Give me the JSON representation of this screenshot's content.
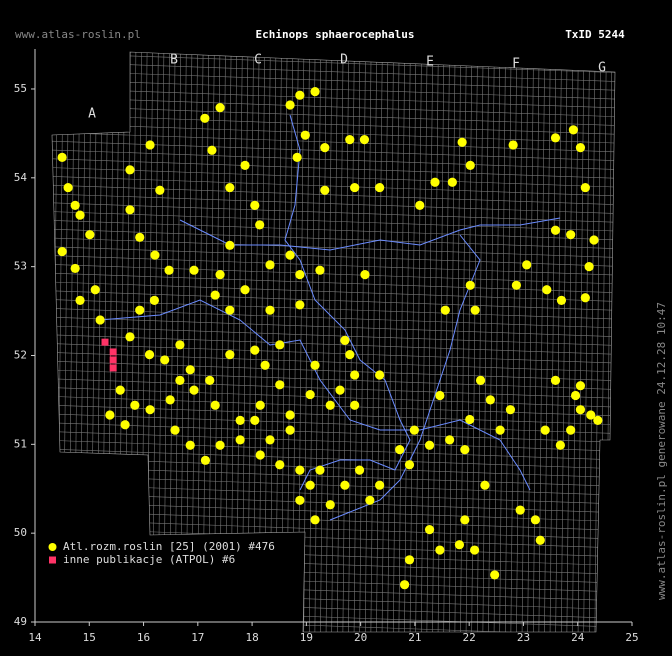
{
  "chart_data": {
    "type": "scatter",
    "title": "Echinops sphaerocephalus",
    "taxon_id": "TxID 5244",
    "site": "www.atlas-roslin.pl",
    "side_note": "www.atlas-roslin.pl generowane 24.12.28 10:47",
    "grid_labels": [
      "A",
      "B",
      "C",
      "D",
      "E",
      "F",
      "G"
    ],
    "xlim": [
      14,
      25
    ],
    "ylim": [
      49,
      55.45
    ],
    "xticks": [
      14,
      15,
      16,
      17,
      18,
      19,
      20,
      21,
      22,
      23,
      24,
      25
    ],
    "yticks": [
      49,
      50,
      51,
      52,
      53,
      54,
      55
    ],
    "series": [
      {
        "name": "Atl.rozm.roslin [25] (2001) #476",
        "color": "#ffff00",
        "marker": "circle",
        "x": [
          14.5,
          14.61,
          14.74,
          14.83,
          15.01,
          14.5,
          14.74,
          14.83,
          15.11,
          15.2,
          15.75,
          15.75,
          15.93,
          16.21,
          16.3,
          16.12,
          17.13,
          17.41,
          17.26,
          17.87,
          17.59,
          18.05,
          18.14,
          18.7,
          18.88,
          19.16,
          18.98,
          18.83,
          19.34,
          19.34,
          19.8,
          19.89,
          20.35,
          20.07,
          21.09,
          21.37,
          21.69,
          22.02,
          21.87,
          22.81,
          23.59,
          23.92,
          24.05,
          24.14,
          23.59,
          23.87,
          24.3,
          24.21,
          23.06,
          22.87,
          23.43,
          23.7,
          24.14,
          22.02,
          22.11,
          21.56,
          20.08,
          19.25,
          18.7,
          18.88,
          18.33,
          17.59,
          17.41,
          17.32,
          17.59,
          17.87,
          18.33,
          18.88,
          16.93,
          16.47,
          16.2,
          15.93,
          15.75,
          16.11,
          16.39,
          16.67,
          16.86,
          17.22,
          17.59,
          18.05,
          18.51,
          18.24,
          18.51,
          19.16,
          19.71,
          19.8,
          19.89,
          20.35,
          19.62,
          19.44,
          19.07,
          19.89,
          18.7,
          18.15,
          17.78,
          17.32,
          16.93,
          16.67,
          16.49,
          16.12,
          15.84,
          15.66,
          15.57,
          15.38,
          16.58,
          16.86,
          17.14,
          17.41,
          17.78,
          18.15,
          18.51,
          18.88,
          19.25,
          19.07,
          18.88,
          19.16,
          19.44,
          19.71,
          19.98,
          20.17,
          20.35,
          20.72,
          20.9,
          20.99,
          21.27,
          21.46,
          21.64,
          21.92,
          22.01,
          22.21,
          22.39,
          22.57,
          22.76,
          22.29,
          21.92,
          21.82,
          22.1,
          22.47,
          21.46,
          21.27,
          20.9,
          20.81,
          22.94,
          23.22,
          23.31,
          23.4,
          23.59,
          23.96,
          24.05,
          24.24,
          23.87,
          23.68,
          24.05,
          24.37,
          18.05,
          18.33,
          18.7
        ],
        "y": [
          54.23,
          53.89,
          53.69,
          53.58,
          53.36,
          53.17,
          52.98,
          52.62,
          52.74,
          52.4,
          54.09,
          53.64,
          53.33,
          53.13,
          53.86,
          54.37,
          54.67,
          54.79,
          54.31,
          54.14,
          53.89,
          53.69,
          53.47,
          54.82,
          54.93,
          54.97,
          54.48,
          54.23,
          54.34,
          53.86,
          54.43,
          53.89,
          53.89,
          54.43,
          53.69,
          53.95,
          53.95,
          54.14,
          54.4,
          54.37,
          54.45,
          54.54,
          54.34,
          53.89,
          53.41,
          53.36,
          53.3,
          53.0,
          53.02,
          52.79,
          52.74,
          52.62,
          52.65,
          52.79,
          52.51,
          52.51,
          52.91,
          52.96,
          53.13,
          52.91,
          53.02,
          53.24,
          52.91,
          52.68,
          52.51,
          52.74,
          52.51,
          52.57,
          52.96,
          52.96,
          52.62,
          52.51,
          52.21,
          52.01,
          51.95,
          52.12,
          51.84,
          51.72,
          52.01,
          52.06,
          52.12,
          51.89,
          51.67,
          51.89,
          52.17,
          52.01,
          51.78,
          51.78,
          51.61,
          51.44,
          51.56,
          51.44,
          51.33,
          51.44,
          51.27,
          51.44,
          51.61,
          51.72,
          51.5,
          51.39,
          51.44,
          51.22,
          51.61,
          51.33,
          51.16,
          50.99,
          50.82,
          50.99,
          51.05,
          50.88,
          50.77,
          50.71,
          50.71,
          50.54,
          50.37,
          50.15,
          50.32,
          50.54,
          50.71,
          50.37,
          50.54,
          50.94,
          50.77,
          51.16,
          50.99,
          51.55,
          51.05,
          50.94,
          51.28,
          51.72,
          51.5,
          51.16,
          51.39,
          50.54,
          50.15,
          49.87,
          49.81,
          49.53,
          49.81,
          50.04,
          49.7,
          49.42,
          50.26,
          50.15,
          49.92,
          51.16,
          51.72,
          51.55,
          51.39,
          51.33,
          51.16,
          50.99,
          51.66,
          51.27,
          51.27,
          51.05,
          51.16
        ]
      },
      {
        "name": "inne publikacje (ATPOL) #6",
        "color": "#ff3366",
        "marker": "square",
        "x": [
          15.29,
          15.44,
          15.44,
          15.44
        ],
        "y": [
          52.15,
          52.04,
          51.95,
          51.86
        ]
      }
    ]
  }
}
